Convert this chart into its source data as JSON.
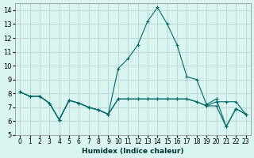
{
  "xlabel": "Humidex (Indice chaleur)",
  "ylabel": "",
  "x": [
    0,
    1,
    2,
    3,
    4,
    5,
    6,
    7,
    8,
    9,
    10,
    11,
    12,
    13,
    14,
    15,
    16,
    17,
    18,
    19,
    20,
    21,
    22,
    23
  ],
  "line1": [
    8.1,
    7.8,
    7.8,
    7.3,
    6.1,
    7.5,
    7.3,
    7.0,
    6.8,
    6.5,
    7.6,
    7.6,
    7.6,
    7.6,
    7.6,
    7.6,
    7.6,
    7.6,
    7.4,
    7.1,
    7.4,
    7.4,
    7.4,
    6.5
  ],
  "line2": [
    8.1,
    7.8,
    7.8,
    7.3,
    6.1,
    7.5,
    7.3,
    7.0,
    6.8,
    6.5,
    7.6,
    7.6,
    7.6,
    7.6,
    7.6,
    7.6,
    7.6,
    7.6,
    7.4,
    7.1,
    7.1,
    5.6,
    6.9,
    6.5
  ],
  "line3": [
    8.1,
    7.8,
    7.8,
    7.3,
    6.1,
    7.5,
    7.3,
    7.0,
    6.8,
    6.5,
    9.8,
    10.5,
    11.5,
    13.2,
    14.2,
    13.0,
    11.5,
    9.2,
    9.0,
    7.2,
    7.6,
    5.6,
    6.9,
    6.5
  ],
  "bg_color": "#d8f5f0",
  "grid_color": "#c0d8d4",
  "line_color": "#006868",
  "ylim": [
    5,
    14.5
  ],
  "yticks": [
    5,
    6,
    7,
    8,
    9,
    10,
    11,
    12,
    13,
    14
  ],
  "xtick_labels": [
    "0",
    "1",
    "2",
    "3",
    "4",
    "5",
    "6",
    "7",
    "8",
    "9",
    "10",
    "11",
    "12",
    "13",
    "14",
    "15",
    "16",
    "17",
    "18",
    "19",
    "20",
    "21",
    "22",
    "23"
  ]
}
